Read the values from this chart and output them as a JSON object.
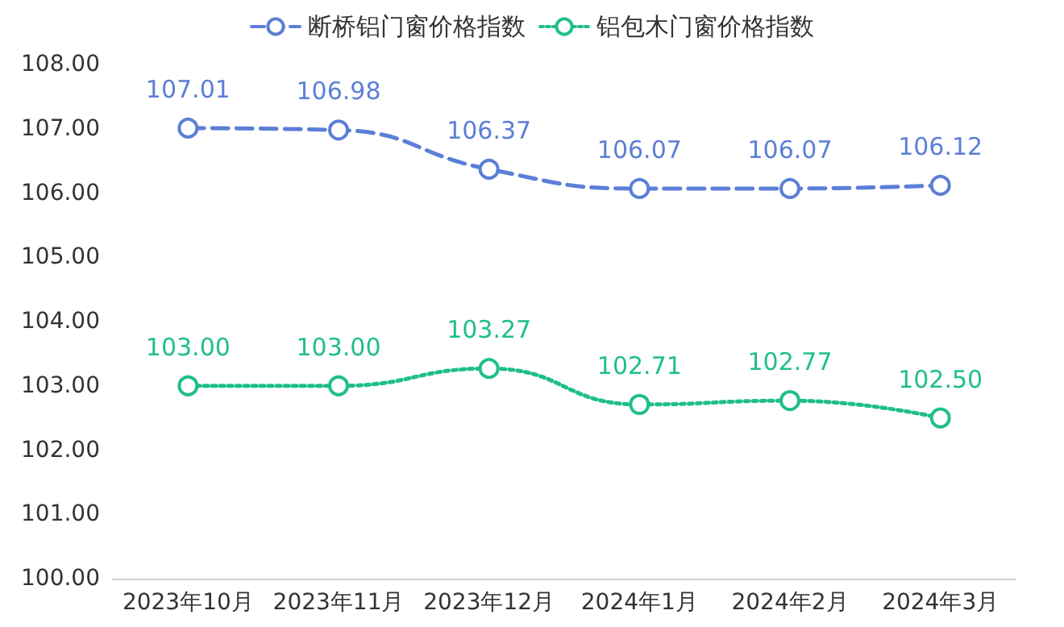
{
  "chart_data": {
    "type": "line",
    "categories": [
      "2023年10月",
      "2023年11月",
      "2023年12月",
      "2024年1月",
      "2024年2月",
      "2024年3月"
    ],
    "series": [
      {
        "name": "断桥铝门窗价格指数",
        "color": "#5b7fd6",
        "line_style": "dashed",
        "values": [
          107.01,
          106.98,
          106.37,
          106.07,
          106.07,
          106.12
        ],
        "value_labels": [
          "107.01",
          "106.98",
          "106.37",
          "106.07",
          "106.07",
          "106.12"
        ]
      },
      {
        "name": "铝包木门窗价格指数",
        "color": "#1fbf88",
        "line_style": "dotted",
        "values": [
          103.0,
          103.0,
          103.27,
          102.71,
          102.77,
          102.5
        ],
        "value_labels": [
          "103.00",
          "103.00",
          "103.27",
          "102.71",
          "102.77",
          "102.50"
        ]
      }
    ],
    "ylim": [
      100,
      108
    ],
    "yticks": [
      {
        "value": 100,
        "label": "100.00"
      },
      {
        "value": 101,
        "label": "101.00"
      },
      {
        "value": 102,
        "label": "102.00"
      },
      {
        "value": 103,
        "label": "103.00"
      },
      {
        "value": 104,
        "label": "104.00"
      },
      {
        "value": 105,
        "label": "105.00"
      },
      {
        "value": 106,
        "label": "106.00"
      },
      {
        "value": 107,
        "label": "107.00"
      },
      {
        "value": 108,
        "label": "108.00"
      }
    ],
    "grid": false,
    "legend": "top",
    "marker": "circle"
  }
}
